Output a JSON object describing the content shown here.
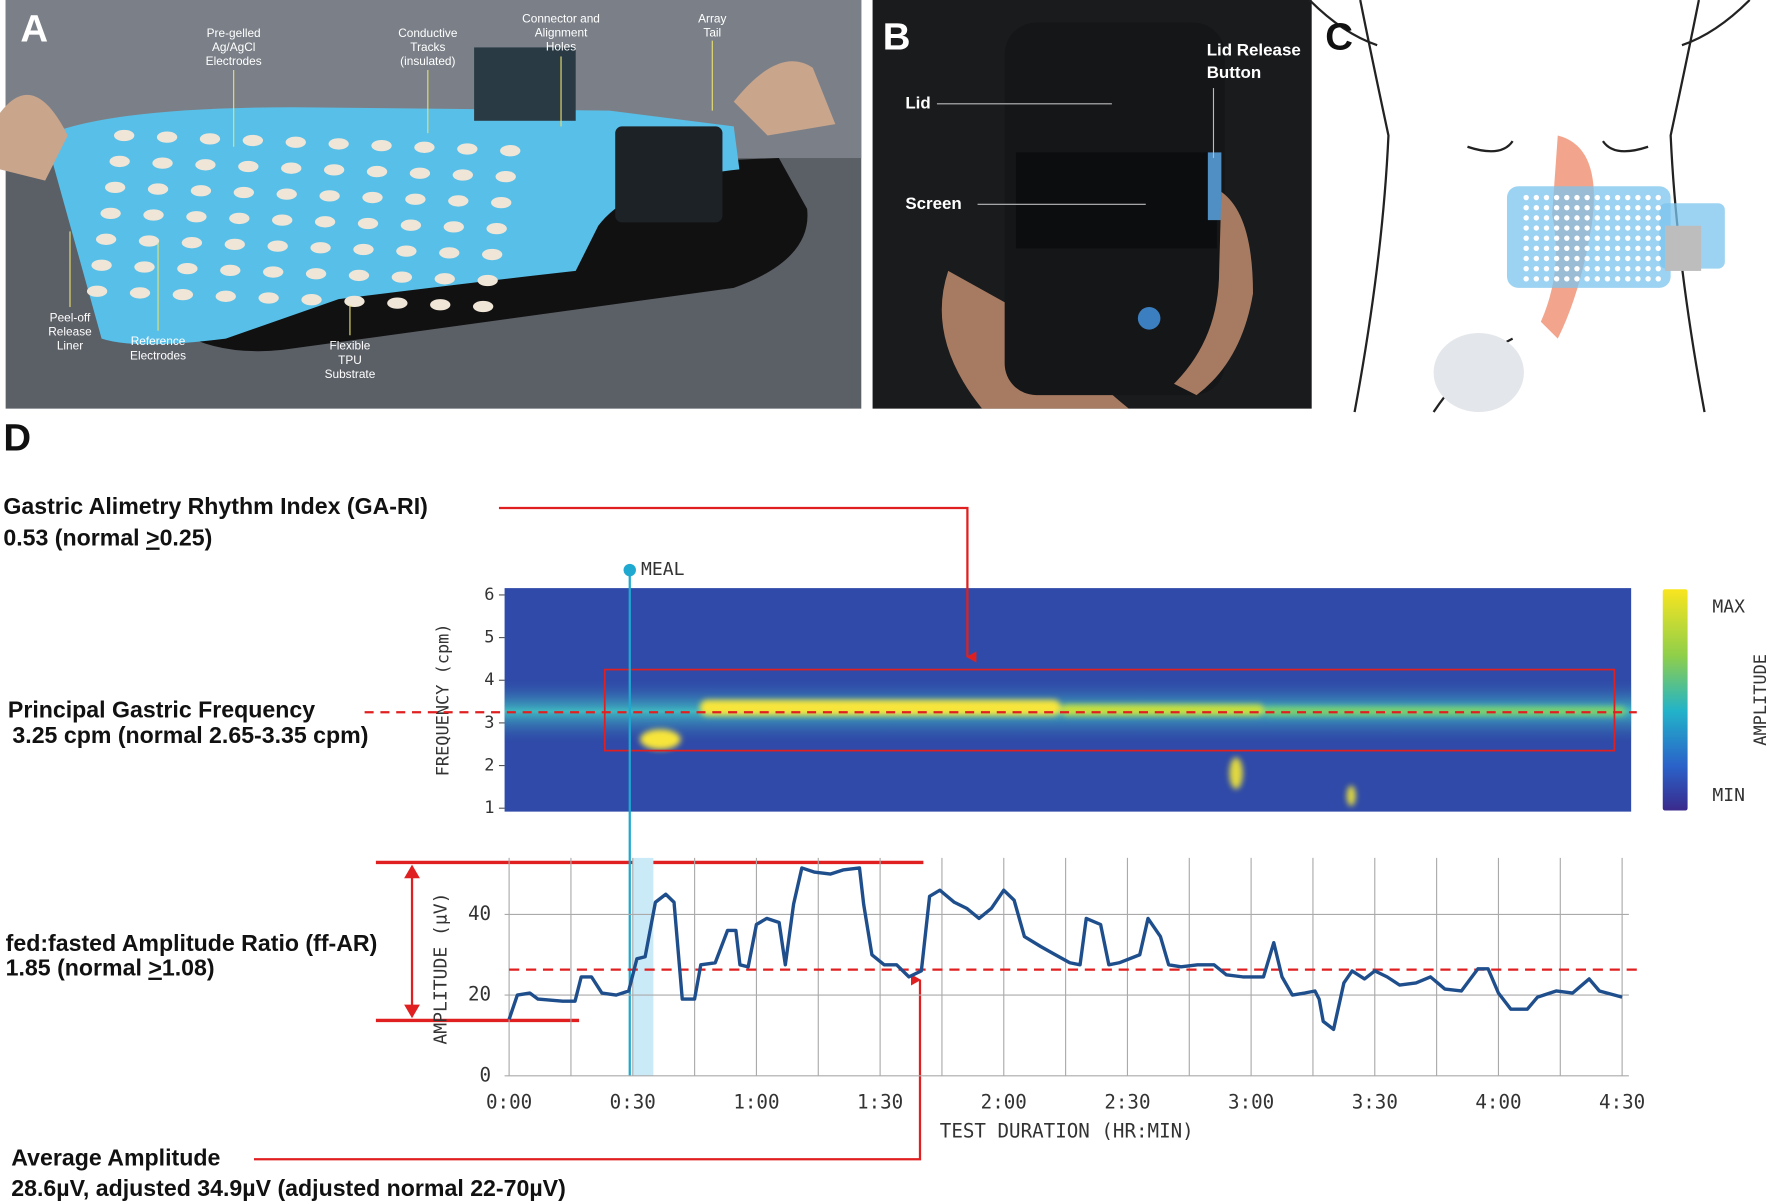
{
  "panels": {
    "A": {
      "label": "A",
      "callouts": [
        [
          "Pre-gelled",
          "Ag/AgCl",
          "Electrodes"
        ],
        [
          "Conductive",
          "Tracks",
          "(insulated)"
        ],
        [
          "Connector and",
          "Alignment",
          "Holes"
        ],
        [
          "Array",
          "Tail"
        ],
        [
          "Peel-off",
          "Release",
          "Liner"
        ],
        [
          "Reference",
          "Electrodes"
        ],
        [
          "Flexible",
          "TPU",
          "Substrate"
        ]
      ]
    },
    "B": {
      "label": "B",
      "callouts": [
        [
          "Lid"
        ],
        [
          "Screen"
        ],
        [
          "Lid Release",
          "Button"
        ]
      ]
    },
    "C": {
      "label": "C"
    },
    "D": {
      "label": "D"
    }
  },
  "annotations": {
    "rhythm_index": {
      "title": "Gastric Alimetry Rhythm Index (GA-RI)",
      "prefix": "0.53 (normal ",
      "symbol": ">",
      "suffix": "0.25)"
    },
    "principal_frequency": {
      "title": "Principal Gastric Frequency",
      "text": "3.25 cpm (normal 2.65-3.35 cpm)"
    },
    "amplitude_ratio": {
      "title": "fed:fasted Amplitude Ratio (ff-AR)",
      "prefix": "1.85 (normal ",
      "symbol": ">",
      "suffix": "1.08)"
    },
    "average_amplitude": {
      "title": "Average Amplitude",
      "text": "28.6µV, adjusted 34.9µV (adjusted normal 22-70µV)"
    }
  },
  "chart_data": [
    {
      "type": "heatmap",
      "ylabel": "FREQUENCY (cpm)",
      "xlim": [
        0,
        270
      ],
      "ylim": [
        0.92,
        6.16
      ],
      "yticks": [
        1,
        2,
        3,
        4,
        5,
        6
      ],
      "reference": 3.25,
      "highlight": {
        "xlim": [
          24,
          266
        ],
        "ylim": [
          2.35,
          4.25
        ]
      },
      "colorbar": {
        "label": "AMPLITUDE",
        "max": "MAX",
        "min": "MIN"
      },
      "event": {
        "label": "MEAL",
        "x": 30
      }
    },
    {
      "type": "line",
      "xlabel": "TEST DURATION (HR:MIN)",
      "ylabel": "AMPLITUDE (µV)",
      "color": "#1f4e8c",
      "grid": true,
      "xlim": [
        0,
        270
      ],
      "ylim": [
        0,
        54
      ],
      "yticks": [
        0,
        20,
        40
      ],
      "xticks": [
        {
          "value": 0,
          "label": "0:00"
        },
        {
          "value": 30,
          "label": "0:30"
        },
        {
          "value": 60,
          "label": "1:00"
        },
        {
          "value": 90,
          "label": "1:30"
        },
        {
          "value": 120,
          "label": "2:00"
        },
        {
          "value": 150,
          "label": "2:30"
        },
        {
          "value": 180,
          "label": "3:00"
        },
        {
          "value": 210,
          "label": "3:30"
        },
        {
          "value": 240,
          "label": "4:00"
        },
        {
          "value": 270,
          "label": "4:30"
        }
      ],
      "xminorticks": [
        15,
        45,
        75,
        105,
        135,
        165,
        195,
        225,
        255
      ],
      "meal_window": [
        30,
        35
      ],
      "mean_line": 26.3,
      "x": [
        0,
        2,
        5,
        7,
        13,
        16,
        17.5,
        20,
        22.5,
        26,
        29,
        31,
        33,
        35.5,
        38,
        40,
        42,
        45,
        46.5,
        50,
        53,
        55,
        56,
        58,
        60,
        62.5,
        65.5,
        67,
        69,
        71,
        74,
        78,
        81,
        85,
        86,
        88,
        91,
        94,
        97,
        100,
        102,
        104.5,
        108,
        111,
        114,
        117,
        120,
        122.5,
        125,
        129,
        132.5,
        136,
        138.5,
        140,
        143.5,
        145.5,
        148,
        153,
        155,
        158,
        160,
        163,
        167,
        171,
        174,
        178,
        183,
        185.5,
        187.5,
        190,
        193,
        195.5,
        196.5,
        197.5,
        200,
        202.5,
        204.5,
        207.5,
        210,
        213,
        216,
        220,
        223.5,
        227,
        231,
        235,
        237.5,
        240,
        243,
        247,
        249.5,
        254,
        258,
        262,
        264.5,
        270
      ],
      "values": [
        14,
        20,
        20.5,
        19,
        18.5,
        18.5,
        24.5,
        24.5,
        20.5,
        20,
        21,
        29,
        29.5,
        43,
        45,
        43,
        19,
        19,
        27.5,
        28,
        36,
        36,
        27.5,
        27,
        37.5,
        39,
        38,
        27.5,
        42.5,
        51.5,
        50.5,
        50,
        51,
        51.5,
        42.5,
        30,
        27.5,
        27.5,
        24.5,
        26,
        44.5,
        46,
        43,
        41.5,
        39,
        41.5,
        46,
        43.5,
        34.5,
        32,
        30,
        28,
        27.5,
        39,
        37.5,
        27.5,
        28,
        30,
        39,
        34.5,
        27.5,
        27,
        27.5,
        27.5,
        25,
        24.5,
        24.5,
        33,
        24.5,
        20,
        20.5,
        21,
        19,
        13.5,
        11.5,
        23,
        26,
        24,
        26,
        24.5,
        22.5,
        23,
        24.5,
        21.5,
        21,
        26.5,
        26.5,
        20.5,
        16.5,
        16.5,
        19.5,
        21,
        20.5,
        24,
        21,
        19.5
      ]
    }
  ]
}
